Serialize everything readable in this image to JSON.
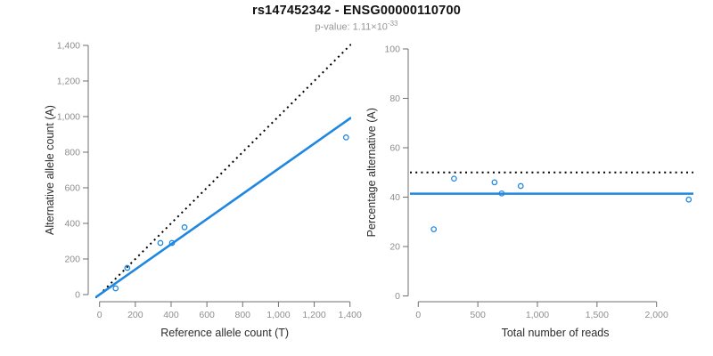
{
  "header": {
    "title": "rs147452342 - ENSG00000110700",
    "subtitle_prefix": "p-value: 1.11×10",
    "subtitle_exponent": "-33"
  },
  "colors": {
    "accent_blue": "#1f87e0",
    "dotted_line": "#000000",
    "axis_line": "#6f6f6f",
    "tick_label": "#8e8e8e",
    "axis_title": "#2b2b2b",
    "subtitle": "#979797"
  },
  "chart_data": [
    {
      "type": "scatter",
      "name": "allele-counts-plot",
      "xlabel": "Reference allele count (T)",
      "ylabel": "Alternative allele count (A)",
      "xlim": [
        0,
        1400
      ],
      "ylim": [
        0,
        1400
      ],
      "grid": false,
      "legend": false,
      "xticks": {
        "values": [
          0,
          200,
          400,
          600,
          800,
          1000,
          1200,
          1400
        ],
        "labels": [
          "0",
          "200",
          "400",
          "600",
          "800",
          "1,000",
          "1,200",
          "1,400"
        ]
      },
      "yticks": {
        "values": [
          0,
          200,
          400,
          600,
          800,
          1000,
          1200,
          1400
        ],
        "labels": [
          "0",
          "200",
          "400",
          "600",
          "800",
          "1,000",
          "1,200",
          "1,400"
        ]
      },
      "points": [
        [
          90,
          35
        ],
        [
          155,
          150
        ],
        [
          340,
          290
        ],
        [
          405,
          290
        ],
        [
          475,
          378
        ],
        [
          1378,
          883
        ]
      ],
      "lines": [
        {
          "kind": "ab",
          "intercept": 0,
          "slope": 1.0,
          "style": "dotted",
          "color": "#000000",
          "meaning": "identity y = x"
        },
        {
          "kind": "ab",
          "intercept": 0,
          "slope": 0.707,
          "style": "solid",
          "color": "#1f87e0",
          "meaning": "fitted allelic ratio"
        }
      ]
    },
    {
      "type": "scatter",
      "name": "percentage-alternative-plot",
      "xlabel": "Total number of reads",
      "ylabel": "Percentage alternative (A)",
      "xlim": [
        0,
        2300
      ],
      "ylim": [
        0,
        100
      ],
      "grid": false,
      "legend": false,
      "xticks": {
        "values": [
          0,
          500,
          1000,
          1500,
          2000
        ],
        "labels": [
          "0",
          "500",
          "1,000",
          "1,500",
          "2,000"
        ]
      },
      "yticks": {
        "values": [
          0,
          20,
          40,
          60,
          80,
          100
        ],
        "labels": [
          "0",
          "20",
          "40",
          "60",
          "80",
          "100"
        ]
      },
      "points": [
        [
          130,
          27
        ],
        [
          300,
          47.5
        ],
        [
          640,
          46
        ],
        [
          700,
          41.5
        ],
        [
          860,
          44.5
        ],
        [
          2270,
          39
        ]
      ],
      "lines": [
        {
          "kind": "h",
          "y": 50,
          "style": "dotted",
          "color": "#000000",
          "meaning": "50% balanced expression"
        },
        {
          "kind": "h",
          "y": 41.4,
          "style": "solid",
          "color": "#1f87e0",
          "meaning": "mean percentage alternative"
        }
      ]
    }
  ]
}
